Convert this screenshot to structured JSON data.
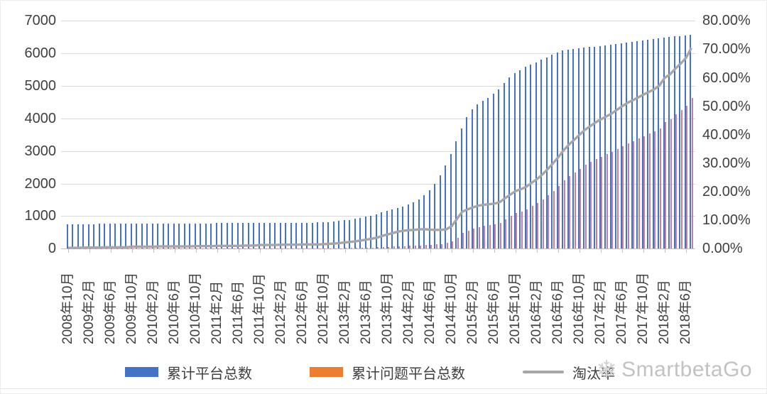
{
  "chart_data": {
    "type": "bar",
    "title": "",
    "x_tick_labels": [
      "2008年10月",
      "2009年2月",
      "2009年6月",
      "2009年10月",
      "2010年2月",
      "2010年6月",
      "2010年10月",
      "2011年2月",
      "2011年6月",
      "2011年10月",
      "2012年2月",
      "2012年6月",
      "2012年10月",
      "2013年2月",
      "2013年6月",
      "2013年10月",
      "2014年2月",
      "2014年6月",
      "2014年10月",
      "2015年2月",
      "2015年6月",
      "2015年10月",
      "2016年2月",
      "2016年6月",
      "2016年10月",
      "2017年2月",
      "2017年6月",
      "2017年10月",
      "2018年2月",
      "2018年6月"
    ],
    "x_tick_every_months": 4,
    "months_start": "2008年10月",
    "months_end": "2018年7月",
    "left_axis": {
      "min": 0,
      "max": 7000,
      "step": 1000,
      "tick_labels": [
        "0",
        "1000",
        "2000",
        "3000",
        "4000",
        "5000",
        "6000",
        "7000"
      ]
    },
    "right_axis": {
      "min": 0,
      "max": 80,
      "step": 10,
      "tick_labels": [
        "0.00%",
        "10.00%",
        "20.00%",
        "30.00%",
        "40.00%",
        "50.00%",
        "60.00%",
        "70.00%",
        "80.00%"
      ]
    },
    "grid": true,
    "legend_position": "bottom",
    "series": [
      {
        "name": "累计平台总数",
        "type": "bar",
        "axis": "left",
        "color": "#4472C4",
        "values": [
          750,
          752,
          754,
          755,
          756,
          758,
          760,
          761,
          762,
          763,
          764,
          765,
          766,
          767,
          768,
          769,
          770,
          771,
          772,
          773,
          774,
          775,
          776,
          777,
          778,
          779,
          780,
          781,
          782,
          783,
          784,
          785,
          786,
          787,
          788,
          789,
          790,
          791,
          792,
          793,
          794,
          795,
          796,
          797,
          798,
          800,
          802,
          805,
          810,
          820,
          835,
          850,
          870,
          890,
          915,
          945,
          980,
          1020,
          1065,
          1110,
          1155,
          1200,
          1250,
          1300,
          1360,
          1430,
          1520,
          1640,
          1800,
          2000,
          2250,
          2550,
          2900,
          3300,
          3700,
          4050,
          4280,
          4430,
          4540,
          4630,
          4760,
          4900,
          5080,
          5260,
          5390,
          5490,
          5580,
          5660,
          5730,
          5800,
          5870,
          5950,
          6020,
          6090,
          6110,
          6130,
          6150,
          6170,
          6190,
          6210,
          6230,
          6250,
          6265,
          6280,
          6300,
          6330,
          6355,
          6380,
          6400,
          6420,
          6440,
          6460,
          6480,
          6500,
          6520,
          6535,
          6550,
          6570
        ]
      },
      {
        "name": "累计问题平台总数",
        "type": "bar",
        "axis": "left",
        "color": "#ED7D31",
        "render_tint": "#c77f9d",
        "values": [
          2,
          2,
          2,
          3,
          3,
          3,
          3,
          4,
          4,
          4,
          4,
          4,
          5,
          5,
          5,
          5,
          5,
          6,
          6,
          6,
          6,
          6,
          6,
          6,
          7,
          7,
          7,
          7,
          8,
          8,
          8,
          8,
          8,
          9,
          9,
          9,
          10,
          10,
          10,
          10,
          11,
          11,
          11,
          11,
          12,
          12,
          12,
          12,
          13,
          14,
          15,
          17,
          19,
          21,
          24,
          27,
          31,
          36,
          42,
          50,
          58,
          66,
          75,
          82,
          88,
          95,
          103,
          112,
          120,
          132,
          149,
          173,
          230,
          345,
          480,
          560,
          620,
          670,
          700,
          720,
          750,
          800,
          900,
          1000,
          1090,
          1150,
          1210,
          1310,
          1400,
          1510,
          1640,
          1780,
          1930,
          2100,
          2230,
          2340,
          2460,
          2570,
          2660,
          2750,
          2830,
          2900,
          2970,
          3060,
          3150,
          3240,
          3310,
          3390,
          3460,
          3530,
          3600,
          3700,
          3890,
          3980,
          4120,
          4250,
          4390,
          4630
        ]
      },
      {
        "name": "淘汰率",
        "type": "line",
        "axis": "right",
        "color": "#a6a6a6",
        "values": [
          0.3,
          0.3,
          0.3,
          0.4,
          0.4,
          0.4,
          0.4,
          0.5,
          0.5,
          0.5,
          0.5,
          0.5,
          0.7,
          0.7,
          0.7,
          0.7,
          0.7,
          0.8,
          0.8,
          0.8,
          0.8,
          0.8,
          0.8,
          0.8,
          0.9,
          0.9,
          0.9,
          0.9,
          1.0,
          1.0,
          1.0,
          1.0,
          1.0,
          1.1,
          1.1,
          1.1,
          1.3,
          1.3,
          1.3,
          1.3,
          1.4,
          1.4,
          1.4,
          1.4,
          1.5,
          1.5,
          1.5,
          1.5,
          1.6,
          1.7,
          1.8,
          2.0,
          2.2,
          2.4,
          2.6,
          2.9,
          3.2,
          3.5,
          3.9,
          4.5,
          5.0,
          5.5,
          6.0,
          6.3,
          6.5,
          6.6,
          6.8,
          6.8,
          6.7,
          6.6,
          6.6,
          6.8,
          7.9,
          10.5,
          13.0,
          13.8,
          14.5,
          15.1,
          15.4,
          15.6,
          15.8,
          16.3,
          17.7,
          19.0,
          20.2,
          20.9,
          21.7,
          23.1,
          24.4,
          26.0,
          27.9,
          29.9,
          32.1,
          34.5,
          36.5,
          38.2,
          40.0,
          41.7,
          43.0,
          44.3,
          45.4,
          46.4,
          47.4,
          48.7,
          50.0,
          51.2,
          52.1,
          53.1,
          54.1,
          55.0,
          55.9,
          57.3,
          60.0,
          61.2,
          63.2,
          65.0,
          67.0,
          70.5
        ]
      }
    ]
  },
  "legend": {
    "items": [
      {
        "label": "累计平台总数",
        "color": "#4472C4",
        "marker": "bar"
      },
      {
        "label": "累计问题平台总数",
        "color": "#ED7D31",
        "marker": "bar"
      },
      {
        "label": "淘汰率",
        "color": "#a6a6a6",
        "marker": "line"
      }
    ]
  },
  "watermark": {
    "text": "SmartbetaGo",
    "icon": "snowflake",
    "color": "#c2c2c2"
  }
}
